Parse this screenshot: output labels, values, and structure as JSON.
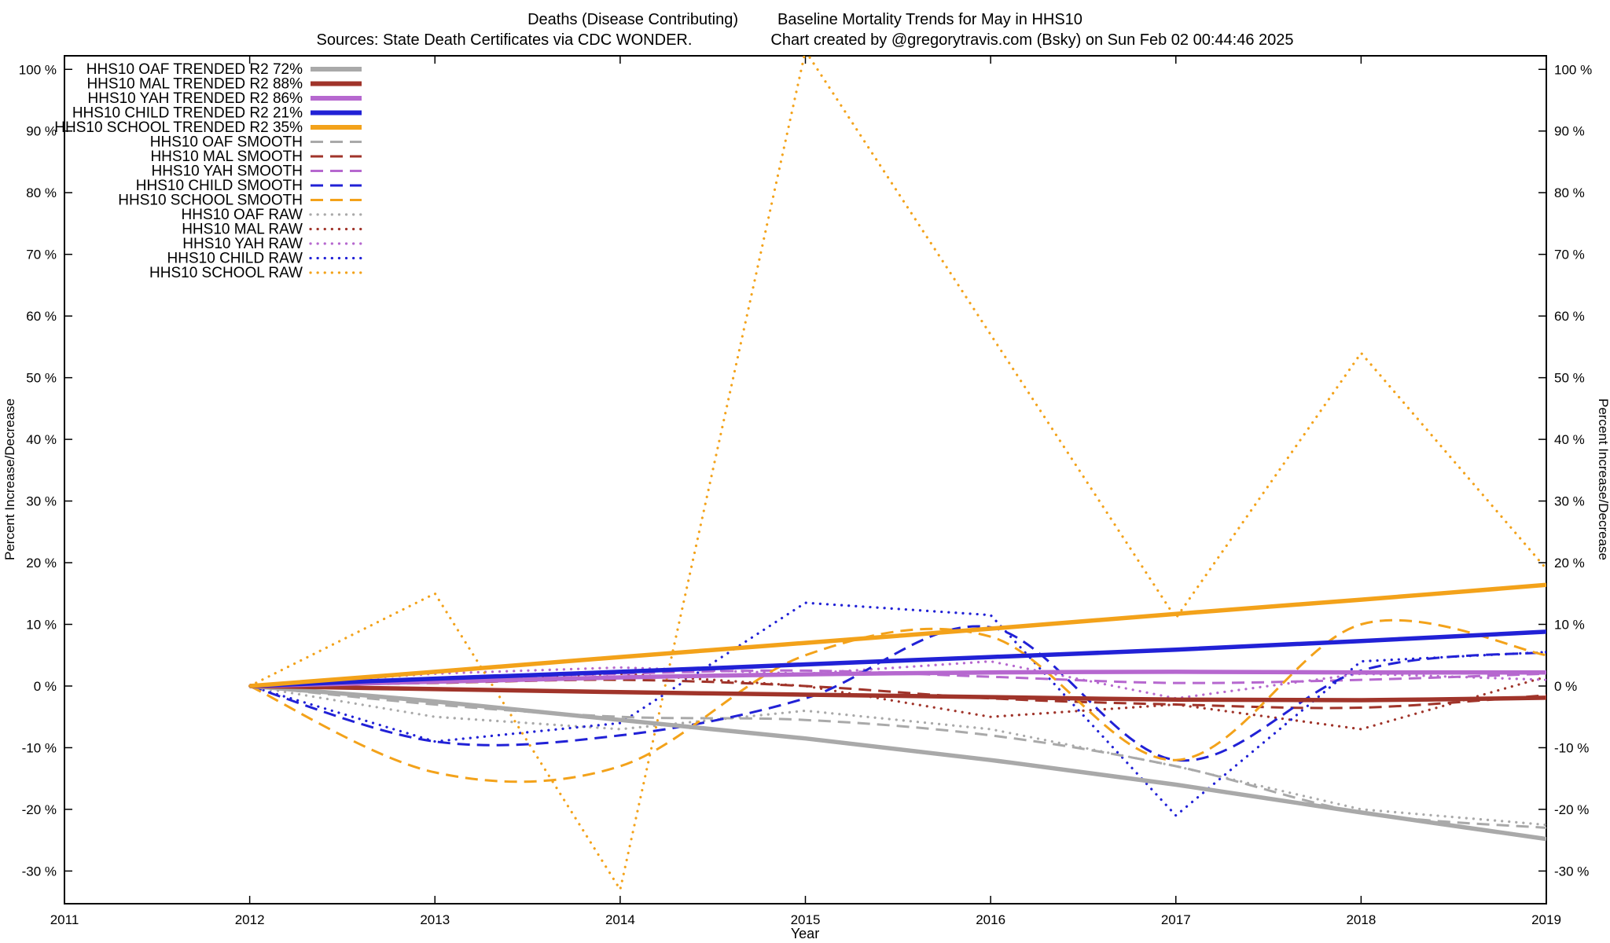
{
  "titles": {
    "line1_left": "Deaths (Disease Contributing)",
    "line1_right": "Baseline Mortality Trends for May in HHS10",
    "line2_left": "Sources: State Death Certificates via CDC WONDER.",
    "line2_right": "Chart created by @gregorytravis.com (Bsky) on Sun Feb 02 00:44:46 2025"
  },
  "chart_data": {
    "type": "line",
    "xlabel": "Year",
    "ylabel": "Percent Increase/Decrease",
    "y2label": "Percent Increase/Decrease",
    "x": [
      2012,
      2013,
      2014,
      2015,
      2016,
      2017,
      2018,
      2019
    ],
    "xlim": [
      2011,
      2019
    ],
    "ylim": [
      -35.3,
      102.2
    ],
    "xticks": [
      2011,
      2012,
      2013,
      2014,
      2015,
      2016,
      2017,
      2018,
      2019
    ],
    "yticks": [
      -30,
      -20,
      -10,
      0,
      10,
      20,
      30,
      40,
      50,
      60,
      70,
      80,
      90,
      100
    ],
    "ytick_suffix": " %",
    "grid": false,
    "legend_position": "top-left-inside",
    "colors": {
      "oaf": "#a9a9a9",
      "mal": "#a0342a",
      "yah": "#b668cf",
      "child": "#2121d6",
      "school": "#f3a21a"
    },
    "series": [
      {
        "name": "HHS10 OAF TRENDED R2  72%",
        "style": "trend",
        "color": "#a9a9a9",
        "values": [
          0,
          -2.5,
          -5.5,
          -8.5,
          -12,
          -16,
          -20.5,
          -24.8
        ]
      },
      {
        "name": "HHS10 MAL TRENDED R2  88%",
        "style": "trend",
        "color": "#a0342a",
        "values": [
          0,
          -0.5,
          -1.0,
          -1.4,
          -1.8,
          -2.2,
          -2.3,
          -1.9
        ]
      },
      {
        "name": "HHS10 YAH TRENDED R2  86%",
        "style": "trend",
        "color": "#b668cf",
        "values": [
          0,
          0.7,
          1.4,
          1.9,
          2.2,
          2.3,
          2.2,
          2.2
        ]
      },
      {
        "name": "HHS10 CHILD TRENDED R2  21%",
        "style": "trend",
        "color": "#2121d6",
        "values": [
          0,
          1.2,
          2.3,
          3.5,
          4.7,
          5.9,
          7.3,
          8.8
        ]
      },
      {
        "name": "HHS10 SCHOOL TRENDED R2  35%",
        "style": "trend",
        "color": "#f3a21a",
        "values": [
          0,
          2.3,
          4.7,
          7.0,
          9.3,
          11.7,
          14.0,
          16.4
        ]
      },
      {
        "name": "HHS10 OAF SMOOTH",
        "style": "smooth",
        "color": "#a9a9a9",
        "values": [
          0,
          -3,
          -5,
          -5.5,
          -8,
          -13,
          -20.5,
          -23
        ]
      },
      {
        "name": "HHS10 MAL SMOOTH",
        "style": "smooth",
        "color": "#a0342a",
        "values": [
          0,
          0.5,
          1,
          0,
          -2,
          -3,
          -3.5,
          -1.5
        ]
      },
      {
        "name": "HHS10 YAH SMOOTH",
        "style": "smooth",
        "color": "#b668cf",
        "values": [
          0,
          1,
          2,
          2.5,
          1.5,
          0.5,
          1,
          2
        ]
      },
      {
        "name": "HHS10 CHILD SMOOTH",
        "style": "smooth",
        "color": "#2121d6",
        "values": [
          0,
          -9,
          -8,
          -2,
          9.5,
          -12,
          2.5,
          5.5
        ]
      },
      {
        "name": "HHS10 SCHOOL SMOOTH",
        "style": "smooth",
        "color": "#f3a21a",
        "values": [
          0,
          -14,
          -13,
          5,
          8,
          -12,
          10,
          5
        ]
      },
      {
        "name": "HHS10 OAF RAW",
        "style": "raw",
        "color": "#a9a9a9",
        "values": [
          0,
          -5,
          -7,
          -4,
          -7,
          -13,
          -20,
          -22.5
        ]
      },
      {
        "name": "HHS10 MAL RAW",
        "style": "raw",
        "color": "#a0342a",
        "values": [
          0,
          1,
          2,
          0,
          -5,
          -3,
          -7,
          1.5
        ]
      },
      {
        "name": "HHS10 YAH RAW",
        "style": "raw",
        "color": "#b668cf",
        "values": [
          0,
          2,
          3,
          2,
          4,
          -2,
          2,
          1
        ]
      },
      {
        "name": "HHS10 CHILD RAW",
        "style": "raw",
        "color": "#2121d6",
        "values": [
          0,
          -9,
          -6,
          13.5,
          11.5,
          -21,
          4,
          5.5
        ]
      },
      {
        "name": "HHS10 SCHOOL RAW",
        "style": "raw",
        "color": "#f3a21a",
        "values": [
          0,
          15,
          -33,
          103,
          57,
          11,
          54,
          19
        ]
      }
    ]
  }
}
